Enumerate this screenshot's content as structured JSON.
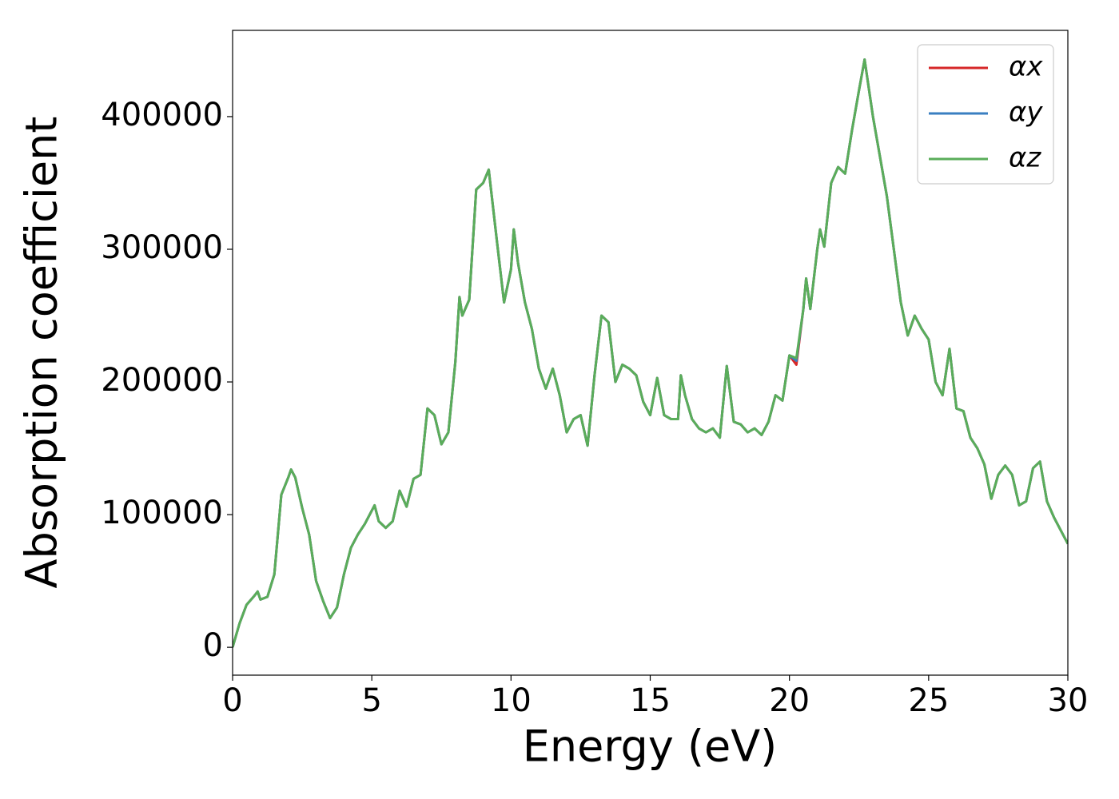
{
  "chart_data": {
    "type": "line",
    "xlabel": "Energy (eV)",
    "ylabel": "Absorption coefficient",
    "x": [
      0,
      0.25,
      0.5,
      0.75,
      0.9,
      1.0,
      1.25,
      1.5,
      1.75,
      2.0,
      2.1,
      2.25,
      2.5,
      2.75,
      3.0,
      3.25,
      3.5,
      3.75,
      4.0,
      4.25,
      4.5,
      4.75,
      5.0,
      5.1,
      5.25,
      5.5,
      5.75,
      6.0,
      6.25,
      6.5,
      6.75,
      7.0,
      7.25,
      7.5,
      7.75,
      8.0,
      8.15,
      8.25,
      8.5,
      8.75,
      9.0,
      9.2,
      9.5,
      9.75,
      10.0,
      10.1,
      10.25,
      10.5,
      10.75,
      11.0,
      11.25,
      11.5,
      11.75,
      12.0,
      12.25,
      12.5,
      12.75,
      13.0,
      13.25,
      13.5,
      13.75,
      14.0,
      14.25,
      14.5,
      14.75,
      15.0,
      15.25,
      15.5,
      15.75,
      16.0,
      16.1,
      16.25,
      16.5,
      16.75,
      17.0,
      17.25,
      17.5,
      17.75,
      18.0,
      18.25,
      18.5,
      18.75,
      19.0,
      19.25,
      19.5,
      19.75,
      20.0,
      20.25,
      20.5,
      20.6,
      20.75,
      21.0,
      21.1,
      21.25,
      21.5,
      21.75,
      22.0,
      22.25,
      22.5,
      22.7,
      23.0,
      23.25,
      23.5,
      23.75,
      24.0,
      24.25,
      24.5,
      24.75,
      25.0,
      25.25,
      25.5,
      25.75,
      26.0,
      26.25,
      26.5,
      26.75,
      27.0,
      27.25,
      27.5,
      27.75,
      28.0,
      28.25,
      28.5,
      28.75,
      29.0,
      29.25,
      29.5,
      29.75,
      30.0
    ],
    "series": [
      {
        "name": "αx",
        "color": "#d62728",
        "values": [
          0,
          18000,
          32000,
          38000,
          42000,
          36000,
          38000,
          55000,
          115000,
          128000,
          134000,
          128000,
          105000,
          85000,
          50000,
          35000,
          22000,
          30000,
          55000,
          75000,
          85000,
          93000,
          103000,
          107000,
          95000,
          90000,
          95000,
          118000,
          106000,
          127000,
          130000,
          180000,
          175000,
          153000,
          162000,
          215000,
          264000,
          250000,
          262000,
          345000,
          350000,
          360000,
          305000,
          260000,
          285000,
          315000,
          290000,
          260000,
          240000,
          210000,
          195000,
          210000,
          190000,
          162000,
          172000,
          175000,
          152000,
          205000,
          250000,
          245000,
          200000,
          213000,
          210000,
          205000,
          185000,
          175000,
          203000,
          175000,
          172000,
          172000,
          205000,
          190000,
          172000,
          165000,
          162000,
          165000,
          158000,
          212000,
          170000,
          168000,
          162000,
          165000,
          160000,
          170000,
          190000,
          186000,
          220000,
          213000,
          255000,
          278000,
          255000,
          300000,
          315000,
          302000,
          350000,
          362000,
          357000,
          390000,
          420000,
          443000,
          400000,
          370000,
          340000,
          300000,
          260000,
          235000,
          250000,
          240000,
          232000,
          200000,
          190000,
          225000,
          180000,
          178000,
          158000,
          150000,
          138000,
          112000,
          130000,
          137000,
          130000,
          107000,
          110000,
          135000,
          140000,
          110000,
          98000,
          88000,
          78000
        ]
      },
      {
        "name": "αy",
        "color": "#3a7fc1",
        "values": [
          0,
          18000,
          32000,
          38000,
          42000,
          36000,
          38000,
          55000,
          115000,
          128000,
          134000,
          128000,
          105000,
          85000,
          50000,
          35000,
          22000,
          30000,
          55000,
          75000,
          85000,
          93000,
          103000,
          107000,
          95000,
          90000,
          95000,
          118000,
          106000,
          127000,
          130000,
          180000,
          175000,
          153000,
          162000,
          215000,
          264000,
          250000,
          262000,
          345000,
          350000,
          360000,
          305000,
          260000,
          285000,
          315000,
          290000,
          260000,
          240000,
          210000,
          195000,
          210000,
          190000,
          162000,
          172000,
          175000,
          152000,
          205000,
          250000,
          245000,
          200000,
          213000,
          210000,
          205000,
          185000,
          175000,
          203000,
          175000,
          172000,
          172000,
          205000,
          190000,
          172000,
          165000,
          162000,
          165000,
          158000,
          212000,
          170000,
          168000,
          162000,
          165000,
          160000,
          170000,
          190000,
          186000,
          220000,
          216000,
          255000,
          278000,
          255000,
          300000,
          315000,
          302000,
          350000,
          362000,
          357000,
          390000,
          420000,
          443000,
          400000,
          370000,
          340000,
          300000,
          260000,
          235000,
          250000,
          240000,
          232000,
          200000,
          190000,
          225000,
          180000,
          178000,
          158000,
          150000,
          138000,
          112000,
          130000,
          137000,
          130000,
          107000,
          110000,
          135000,
          140000,
          110000,
          98000,
          88000,
          78000
        ]
      },
      {
        "name": "αz",
        "color": "#5aad5a",
        "values": [
          0,
          18000,
          32000,
          38000,
          42000,
          36000,
          38000,
          55000,
          115000,
          128000,
          134000,
          128000,
          105000,
          85000,
          50000,
          35000,
          22000,
          30000,
          55000,
          75000,
          85000,
          93000,
          103000,
          107000,
          95000,
          90000,
          95000,
          118000,
          106000,
          127000,
          130000,
          180000,
          175000,
          153000,
          162000,
          215000,
          264000,
          250000,
          262000,
          345000,
          350000,
          360000,
          305000,
          260000,
          285000,
          315000,
          290000,
          260000,
          240000,
          210000,
          195000,
          210000,
          190000,
          162000,
          172000,
          175000,
          152000,
          205000,
          250000,
          245000,
          200000,
          213000,
          210000,
          205000,
          185000,
          175000,
          203000,
          175000,
          172000,
          172000,
          205000,
          190000,
          172000,
          165000,
          162000,
          165000,
          158000,
          212000,
          170000,
          168000,
          162000,
          165000,
          160000,
          170000,
          190000,
          186000,
          220000,
          218000,
          255000,
          278000,
          255000,
          300000,
          315000,
          302000,
          350000,
          362000,
          357000,
          390000,
          420000,
          443000,
          400000,
          370000,
          340000,
          300000,
          260000,
          235000,
          250000,
          240000,
          232000,
          200000,
          190000,
          225000,
          180000,
          178000,
          158000,
          150000,
          138000,
          112000,
          130000,
          137000,
          130000,
          107000,
          110000,
          135000,
          140000,
          110000,
          98000,
          88000,
          78000
        ]
      }
    ],
    "xlim": [
      0,
      30
    ],
    "xticks": [
      0,
      5,
      10,
      15,
      20,
      25,
      30
    ],
    "ylim": [
      -21000,
      465000
    ],
    "yticks": [
      0,
      100000,
      200000,
      300000,
      400000
    ],
    "legend": "upper right"
  }
}
